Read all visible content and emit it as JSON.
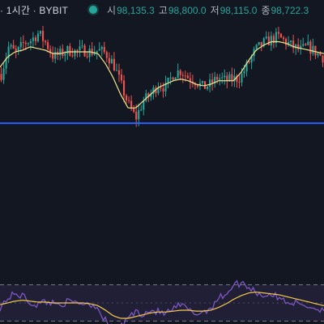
{
  "header": {
    "symbol_title": "· 1시간 · BYBIT",
    "ohlc": [
      {
        "label": "시",
        "value": "98,135.3"
      },
      {
        "label": "고",
        "value": "98,800.0"
      },
      {
        "label": "저",
        "value": "98,115.0"
      },
      {
        "label": "종",
        "value": "98,722.3"
      }
    ]
  },
  "colors": {
    "background": "#131722",
    "up": "#26a69a",
    "down": "#ef5350",
    "moving_average": "#f0e68c",
    "horizontal_line": "#2962ff",
    "oscillator": "#7e57c2",
    "oscillator_signal": "#f2c94c",
    "oscillator_band": "#7e57c2"
  },
  "chart_data": [
    {
      "type": "candlestick",
      "interval": "1시간",
      "exchange": "BYBIT",
      "close_path": [
        97.9,
        98.7,
        98.5,
        98.8,
        98.9,
        99.1,
        98.8,
        98.4,
        98.5,
        98.6,
        98.55,
        98.6,
        98.55,
        98.6,
        98.5,
        98.2,
        97.6,
        97.0,
        96.6,
        97.1,
        97.3,
        97.6,
        97.5,
        97.9,
        98.0,
        97.8,
        97.7,
        97.5,
        97.6,
        97.8,
        97.7,
        97.75,
        97.8,
        98.2,
        98.6,
        98.8,
        98.9,
        99.0,
        98.85,
        98.7,
        98.6,
        98.7,
        98.55,
        98.4
      ],
      "moving_average_path": [
        98.1,
        98.4,
        98.55,
        98.6,
        98.7,
        98.65,
        98.6,
        98.5,
        98.5,
        98.55,
        98.55,
        98.55,
        98.55,
        98.5,
        98.2,
        97.8,
        97.3,
        96.9,
        96.9,
        97.1,
        97.3,
        97.5,
        97.6,
        97.7,
        97.75,
        97.7,
        97.6,
        97.55,
        97.6,
        97.7,
        97.7,
        97.7,
        97.95,
        98.3,
        98.6,
        98.75,
        98.85,
        98.85,
        98.8,
        98.7,
        98.65,
        98.6,
        98.55,
        98.5
      ],
      "horizontal_level": 96.45,
      "y_range": [
        95.5,
        99.6
      ]
    },
    {
      "type": "line",
      "series": [
        {
          "values": [
            45,
            55,
            60,
            58,
            50,
            48,
            52,
            50,
            49,
            51,
            50,
            50,
            49,
            45,
            30,
            20,
            22,
            35,
            40,
            38,
            42,
            40,
            38,
            43,
            48,
            42,
            38,
            40,
            45,
            55,
            60,
            70,
            72,
            68,
            62,
            58,
            60,
            55,
            52,
            50,
            48,
            46,
            44,
            42
          ]
        },
        {
          "values": [
            48,
            50,
            52,
            53,
            52,
            51,
            51,
            50,
            50,
            50,
            50,
            50,
            49,
            47,
            42,
            36,
            33,
            33,
            35,
            37,
            39,
            40,
            40,
            41,
            42,
            42,
            41,
            41,
            42,
            45,
            49,
            54,
            58,
            61,
            62,
            61,
            60,
            59,
            57,
            55,
            53,
            51,
            49,
            47
          ]
        }
      ],
      "band": [
        30,
        70
      ],
      "y_range": [
        0,
        100
      ]
    }
  ]
}
